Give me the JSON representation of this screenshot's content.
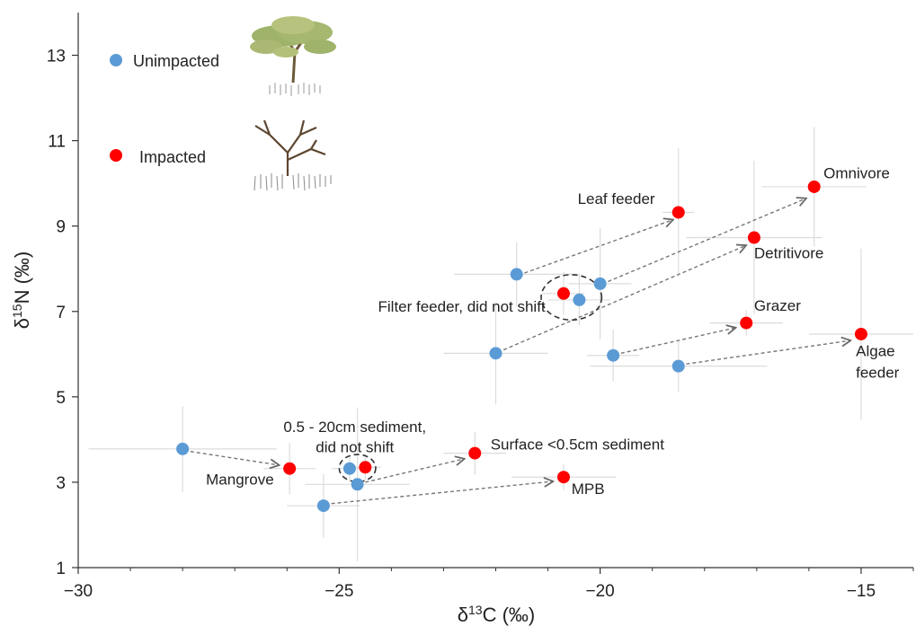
{
  "chart_data": {
    "type": "scatter",
    "xlabel_main": "δ",
    "xlabel_sup": "13",
    "xlabel_rest": "C (‰)",
    "ylabel_main": "δ",
    "ylabel_sup": "15",
    "ylabel_rest": "N (‰)",
    "xlim": [
      -30,
      -14
    ],
    "ylim": [
      1,
      14
    ],
    "xticks": [
      -30,
      -25,
      -20,
      -15
    ],
    "xtick_labels": [
      "−30",
      "−25",
      "−20",
      "−15"
    ],
    "yticks": [
      1,
      3,
      5,
      7,
      9,
      11,
      13
    ],
    "ytick_labels": [
      "1",
      "3",
      "5",
      "7",
      "9",
      "11",
      "13"
    ],
    "grid": false,
    "legend_position": "top-left",
    "colors": {
      "unimpacted": "#5B9BD5",
      "impacted": "#FF0000",
      "error": "#dcdcdc",
      "arrow": "#777777"
    },
    "series": [
      {
        "name": "Unimpacted",
        "color": "#5B9BD5",
        "points": [
          {
            "id": "u_leaf",
            "x": -21.6,
            "y": 7.87,
            "xerr": 1.2,
            "yerr": 0.75
          },
          {
            "id": "u_omni",
            "x": -20.0,
            "y": 7.65,
            "xerr": 0.6,
            "yerr": 1.3
          },
          {
            "id": "u_filter",
            "x": -20.4,
            "y": 7.27,
            "xerr": 0.6,
            "yerr": 0.6
          },
          {
            "id": "u_detr",
            "x": -22.0,
            "y": 6.02,
            "xerr": 1.0,
            "yerr": 1.2
          },
          {
            "id": "u_grazer",
            "x": -19.75,
            "y": 5.97,
            "xerr": 0.5,
            "yerr": 0.6
          },
          {
            "id": "u_algae",
            "x": -18.5,
            "y": 5.72,
            "xerr": 1.7,
            "yerr": 0.6
          },
          {
            "id": "u_mangrove",
            "x": -28.0,
            "y": 3.78,
            "xerr": 1.8,
            "yerr": 1.0
          },
          {
            "id": "u_sed",
            "x": -24.8,
            "y": 3.32,
            "xerr": 0.35,
            "yerr": 0.3
          },
          {
            "id": "u_surface",
            "x": -24.65,
            "y": 2.95,
            "xerr": 1.0,
            "yerr": 1.8
          },
          {
            "id": "u_mpb",
            "x": -25.3,
            "y": 2.45,
            "xerr": 0.7,
            "yerr": 0.75
          }
        ]
      },
      {
        "name": "Impacted",
        "color": "#FF0000",
        "points": [
          {
            "id": "i_leaf",
            "x": -18.5,
            "y": 9.32,
            "xerr": 0.3,
            "yerr": 1.5
          },
          {
            "id": "i_omni",
            "x": -15.9,
            "y": 9.92,
            "xerr": 1.0,
            "yerr": 1.4
          },
          {
            "id": "i_detr",
            "x": -17.05,
            "y": 8.73,
            "xerr": 1.3,
            "yerr": 1.8
          },
          {
            "id": "i_filter",
            "x": -20.7,
            "y": 7.42,
            "xerr": 0.4,
            "yerr": 0.5
          },
          {
            "id": "i_grazer",
            "x": -17.2,
            "y": 6.73,
            "xerr": 0.7,
            "yerr": 0.3
          },
          {
            "id": "i_algae",
            "x": -15.0,
            "y": 6.47,
            "xerr": 1.0,
            "yerr": 2.0
          },
          {
            "id": "i_mangrove",
            "x": -25.95,
            "y": 3.32,
            "xerr": 0.5,
            "yerr": 0.6
          },
          {
            "id": "i_sed",
            "x": -24.5,
            "y": 3.35,
            "xerr": 0.3,
            "yerr": 0.3
          },
          {
            "id": "i_surface",
            "x": -22.4,
            "y": 3.68,
            "xerr": 0.6,
            "yerr": 0.5
          },
          {
            "id": "i_mpb",
            "x": -20.7,
            "y": 3.12,
            "xerr": 1.0,
            "yerr": 0.3
          }
        ]
      }
    ],
    "arrows": [
      {
        "from": [
          -21.45,
          7.9
        ],
        "to": [
          -18.6,
          9.15
        ]
      },
      {
        "from": [
          -19.85,
          7.7
        ],
        "to": [
          -16.05,
          9.65
        ]
      },
      {
        "from": [
          -21.85,
          6.1
        ],
        "to": [
          -17.2,
          8.55
        ]
      },
      {
        "from": [
          -19.6,
          6.02
        ],
        "to": [
          -17.4,
          6.62
        ]
      },
      {
        "from": [
          -18.35,
          5.77
        ],
        "to": [
          -15.2,
          6.32
        ]
      },
      {
        "from": [
          -27.85,
          3.72
        ],
        "to": [
          -26.15,
          3.4
        ]
      },
      {
        "from": [
          -24.5,
          3.0
        ],
        "to": [
          -22.6,
          3.55
        ]
      },
      {
        "from": [
          -25.15,
          2.5
        ],
        "to": [
          -20.9,
          3.02
        ]
      }
    ],
    "annotations": [
      {
        "text": "Leaf feeder",
        "x": -18.95,
        "y": 9.52,
        "anchor": "end"
      },
      {
        "text": "Omnivore",
        "x": -15.72,
        "y": 10.12,
        "anchor": "start"
      },
      {
        "text": "Detritivore",
        "x": -17.05,
        "y": 8.25,
        "anchor": "start"
      },
      {
        "text": "Filter feeder, did not shift",
        "x": -21.05,
        "y": 7.0,
        "anchor": "end"
      },
      {
        "text": "Grazer",
        "x": -17.05,
        "y": 7.02,
        "anchor": "start"
      },
      {
        "text": "Algae",
        "x": -15.1,
        "y": 5.95,
        "anchor": "start"
      },
      {
        "text": "feeder",
        "x": -15.1,
        "y": 5.45,
        "anchor": "start"
      },
      {
        "text": "0.5 - 20cm sediment,",
        "x": -24.7,
        "y": 4.18,
        "anchor": "middle"
      },
      {
        "text": "did not shift",
        "x": -24.7,
        "y": 3.7,
        "anchor": "middle"
      },
      {
        "text": "Surface <0.5cm sediment",
        "x": -22.1,
        "y": 3.77,
        "anchor": "start"
      },
      {
        "text": "Mangrove",
        "x": -26.25,
        "y": 2.95,
        "anchor": "end"
      },
      {
        "text": "MPB",
        "x": -20.55,
        "y": 2.72,
        "anchor": "start"
      }
    ],
    "ellipses": [
      {
        "cx": -20.55,
        "cy": 7.33,
        "rx": 0.58,
        "ry": 0.53,
        "label": "filter-feeder-ellipse"
      },
      {
        "cx": -24.65,
        "cy": 3.33,
        "rx": 0.35,
        "ry": 0.32,
        "label": "sediment-ellipse"
      }
    ],
    "legend": [
      {
        "label": "Unimpacted",
        "color": "#5B9BD5"
      },
      {
        "label": "Impacted",
        "color": "#FF0000"
      }
    ]
  }
}
